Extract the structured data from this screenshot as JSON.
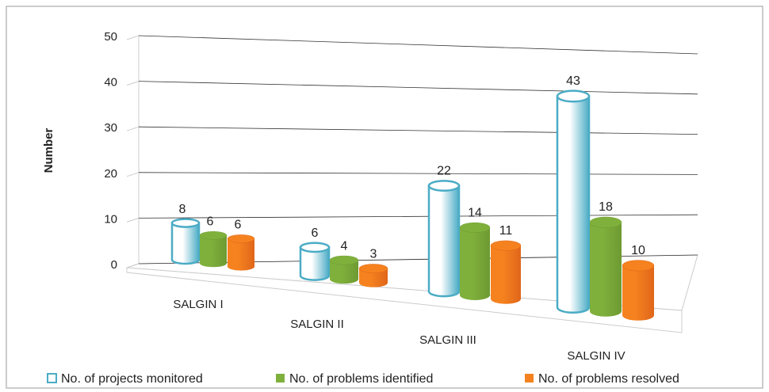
{
  "chart_data": {
    "type": "bar3d",
    "y_label": "Number",
    "categories": [
      "SALGIN I",
      "SALGIN II",
      "SALGIN III",
      "SALGIN IV"
    ],
    "series": [
      {
        "name": "No. of projects monitored",
        "color": "#4bacc6",
        "fill": "#ffffff",
        "values": [
          8,
          6,
          22,
          43
        ]
      },
      {
        "name": "No. of problems identified",
        "color": "#6e9a32",
        "fill": "#7fb03c",
        "values": [
          6,
          4,
          14,
          18
        ]
      },
      {
        "name": "No. of problems resolved",
        "color": "#e0661a",
        "fill": "#f5821f",
        "values": [
          6,
          3,
          11,
          10
        ]
      }
    ],
    "ylim": [
      0,
      50
    ],
    "yticks": [
      0,
      10,
      20,
      30,
      40,
      50
    ],
    "grid": true
  }
}
